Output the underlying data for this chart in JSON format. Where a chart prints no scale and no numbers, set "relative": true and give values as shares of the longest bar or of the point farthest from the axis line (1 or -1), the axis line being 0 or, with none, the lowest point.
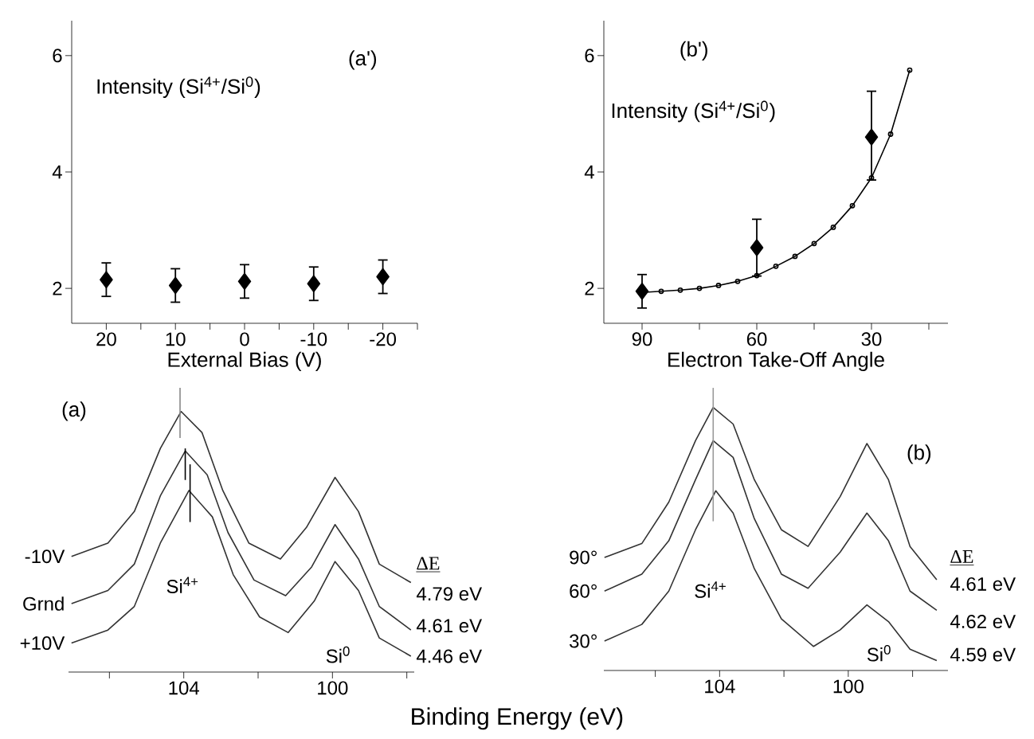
{
  "chart_data": [
    {
      "type": "scatter",
      "title": "(a')",
      "ylabel": "Intensity (Si$^{4+}$/Si$^{0}$)",
      "xlabel": "External Bias (V)",
      "x": [
        20,
        10,
        0,
        -10,
        -20
      ],
      "xlim": [
        25,
        -25
      ],
      "xticks": [
        20,
        {
          "value": 15,
          "label": null
        },
        10,
        {
          "value": 5,
          "label": null
        },
        0,
        {
          "value": -5,
          "label": null
        },
        -10,
        {
          "value": -15,
          "label": null
        },
        -20,
        {
          "value": -25,
          "label": null
        }
      ],
      "ylim": [
        1.4,
        6.6
      ],
      "yticks": [
        2,
        4,
        6
      ],
      "marker": "diamond",
      "series": [
        {
          "color": "#000000",
          "values": [
            2.15,
            2.05,
            2.12,
            2.08,
            2.2
          ],
          "errors": [
            [
              1.85,
              2.45
            ],
            [
              1.75,
              2.35
            ],
            [
              1.82,
              2.42
            ],
            [
              1.78,
              2.38
            ],
            [
              1.9,
              2.5
            ]
          ]
        }
      ]
    },
    {
      "type": "scatter",
      "title": "(b')",
      "ylabel": "Intensity (Si$^{4+}$/Si$^{0}$)",
      "xlabel": "Electron Take-Off Angle",
      "x": [
        90,
        60,
        30
      ],
      "xlim": [
        100,
        10
      ],
      "xticks": [
        90,
        {
          "value": 75,
          "label": null
        },
        60,
        {
          "value": 45,
          "label": null
        },
        30,
        {
          "value": 15,
          "label": null
        }
      ],
      "ylim": [
        1.4,
        6.6
      ],
      "yticks": [
        2,
        4,
        6
      ],
      "series": [
        {
          "color": "#000000",
          "marker": "diamond",
          "values": [
            1.95,
            2.7,
            4.6
          ],
          "errors": [
            [
              1.65,
              2.25
            ],
            [
              2.2,
              3.2
            ],
            [
              3.85,
              5.4
            ]
          ]
        },
        {
          "type": "line",
          "color": "#000000",
          "marker": "circle",
          "x": [
            90,
            85,
            80,
            75,
            70,
            65,
            60,
            55,
            50,
            45,
            40,
            35,
            30,
            25,
            20
          ],
          "values": [
            1.93,
            1.95,
            1.97,
            2.0,
            2.05,
            2.12,
            2.22,
            2.38,
            2.55,
            2.77,
            3.05,
            3.42,
            3.9,
            4.65,
            5.75
          ]
        }
      ]
    },
    {
      "type": "line",
      "relative": true,
      "title": "(a)",
      "xlabel": "Binding Energy (eV)",
      "xlim": [
        107.1,
        97.8
      ],
      "xticks": [
        {
          "value": 106,
          "label": null
        },
        104,
        {
          "value": 102,
          "label": null
        },
        100,
        {
          "value": 98,
          "label": null
        }
      ],
      "line_style": "solid",
      "series": [
        {
          "name": "-10V",
          "color": "#333333",
          "x": [
            107.02,
            106.04,
            105.33,
            104.63,
            104.07,
            103.51,
            102.95,
            102.25,
            101.4,
            100.7,
            99.93,
            99.3,
            98.74,
            97.89
          ],
          "values": [
            0.407,
            0.454,
            0.565,
            0.787,
            0.917,
            0.843,
            0.639,
            0.454,
            0.398,
            0.509,
            0.685,
            0.565,
            0.38,
            0.315
          ]
        },
        {
          "name": "Grnd",
          "color": "#333333",
          "x": [
            107.02,
            106.04,
            105.33,
            104.63,
            103.96,
            103.37,
            102.81,
            102.11,
            101.26,
            100.56,
            99.93,
            99.3,
            98.74,
            97.89
          ],
          "values": [
            0.241,
            0.287,
            0.38,
            0.62,
            0.778,
            0.694,
            0.491,
            0.324,
            0.269,
            0.37,
            0.519,
            0.398,
            0.231,
            0.148
          ]
        },
        {
          "name": "+10V",
          "color": "#333333",
          "x": [
            107.02,
            106.04,
            105.33,
            104.63,
            103.86,
            103.23,
            102.67,
            101.96,
            101.19,
            100.49,
            99.93,
            99.3,
            98.74,
            97.89
          ],
          "values": [
            0.102,
            0.148,
            0.231,
            0.454,
            0.639,
            0.546,
            0.343,
            0.194,
            0.139,
            0.25,
            0.389,
            0.287,
            0.12,
            0.056
          ]
        },
        {
          "color": "#888888",
          "x": [
            104.1,
            104.1
          ],
          "values": [
            1.0,
            0.824
          ]
        },
        {
          "color": "#000000",
          "x": [
            103.96,
            103.96
          ],
          "values": [
            0.787,
            0.676
          ]
        },
        {
          "color": "#000000",
          "x": [
            103.83,
            103.83
          ],
          "values": [
            0.731,
            0.528
          ]
        }
      ],
      "annotations": [
        "Si$^{4+}$",
        "Si$^{0}$",
        "ΔE",
        "4.79 eV",
        "4.61 eV",
        "4.46 eV"
      ]
    },
    {
      "type": "line",
      "relative": true,
      "title": "(b)",
      "xlim": [
        107.6,
        96.9
      ],
      "xticks": [
        {
          "value": 106,
          "label": null
        },
        104,
        {
          "value": 102,
          "label": null
        },
        100,
        {
          "value": 98,
          "label": null
        }
      ],
      "line_style": "solid",
      "series": [
        {
          "name": "90°",
          "color": "#333333",
          "x": [
            107.58,
            106.42,
            105.58,
            104.75,
            104.2,
            103.58,
            102.92,
            102.08,
            101.25,
            100.25,
            99.42,
            98.75,
            98.08,
            97.25
          ],
          "values": [
            0.4,
            0.449,
            0.596,
            0.813,
            0.931,
            0.872,
            0.675,
            0.498,
            0.439,
            0.616,
            0.803,
            0.675,
            0.439,
            0.321
          ]
        },
        {
          "name": "60°",
          "color": "#333333",
          "x": [
            107.58,
            106.42,
            105.58,
            104.75,
            104.2,
            103.58,
            102.92,
            102.08,
            101.25,
            100.25,
            99.42,
            98.75,
            98.08,
            97.25
          ],
          "values": [
            0.281,
            0.341,
            0.459,
            0.675,
            0.813,
            0.754,
            0.537,
            0.341,
            0.291,
            0.419,
            0.557,
            0.459,
            0.281,
            0.213
          ]
        },
        {
          "name": "30°",
          "color": "#333333",
          "x": [
            107.58,
            106.42,
            105.58,
            104.75,
            104.12,
            103.58,
            102.92,
            102.08,
            101.08,
            100.25,
            99.42,
            98.75,
            98.08,
            97.25
          ],
          "values": [
            0.104,
            0.163,
            0.281,
            0.498,
            0.636,
            0.557,
            0.36,
            0.183,
            0.085,
            0.144,
            0.232,
            0.173,
            0.075,
            0.035
          ]
        },
        {
          "color": "#999999",
          "x": [
            104.2,
            104.2
          ],
          "values": [
            1.0,
            0.528
          ]
        }
      ],
      "annotations": [
        "Si$^{4+}$",
        "Si$^{0}$",
        "ΔE",
        "4.61 eV",
        "4.62 eV",
        "4.59 eV"
      ]
    }
  ]
}
